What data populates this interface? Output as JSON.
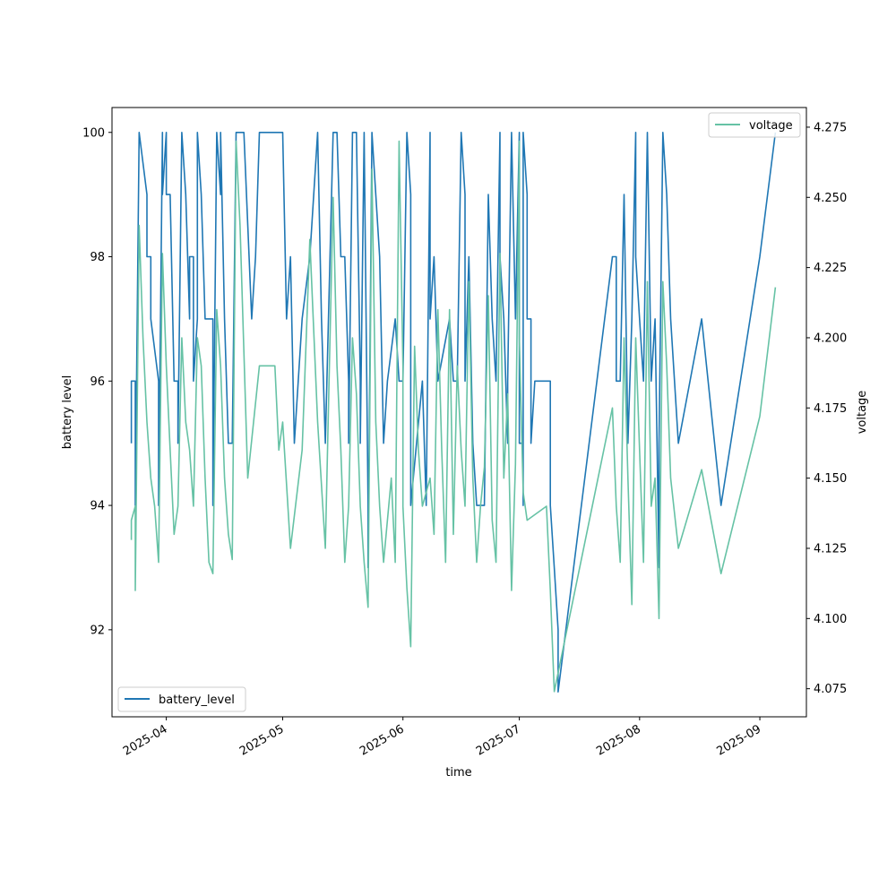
{
  "chart_data": {
    "type": "line",
    "title": "",
    "xlabel": "time",
    "ylabel_left": "battery level",
    "ylabel_right": "voltage",
    "x_ticks": [
      "2025-04-01",
      "2025-05-01",
      "2025-06-01",
      "2025-07-01",
      "2025-08-01",
      "2025-09-01"
    ],
    "x_tick_labels": [
      "2025-04",
      "2025-05",
      "2025-06",
      "2025-07",
      "2025-08",
      "2025-09"
    ],
    "xlim": [
      "2025-03-18",
      "2025-09-13"
    ],
    "ylim_left": [
      90.6,
      100.4
    ],
    "ylim_right": [
      4.065,
      4.282
    ],
    "y_ticks_left": [
      92,
      94,
      96,
      98,
      100
    ],
    "y_tick_labels_left": [
      "92",
      "94",
      "96",
      "98",
      "100"
    ],
    "y_ticks_right": [
      4.075,
      4.1,
      4.125,
      4.15,
      4.175,
      4.2,
      4.225,
      4.25,
      4.275
    ],
    "y_tick_labels_right": [
      "4.075",
      "4.100",
      "4.125",
      "4.150",
      "4.175",
      "4.200",
      "4.225",
      "4.250",
      "4.275"
    ],
    "grid": false,
    "series": [
      {
        "name": "battery_level",
        "axis": "left",
        "color": "#1f77b4",
        "legend": "lower-left",
        "points": [
          [
            "2025-03-23",
            95
          ],
          [
            "2025-03-23",
            96
          ],
          [
            "2025-03-24",
            96
          ],
          [
            "2025-03-24",
            94
          ],
          [
            "2025-03-25",
            100
          ],
          [
            "2025-03-25",
            100
          ],
          [
            "2025-03-27",
            99
          ],
          [
            "2025-03-27",
            98
          ],
          [
            "2025-03-28",
            98
          ],
          [
            "2025-03-28",
            97
          ],
          [
            "2025-03-30",
            96
          ],
          [
            "2025-03-30",
            94
          ],
          [
            "2025-03-31",
            100
          ],
          [
            "2025-03-31",
            99
          ],
          [
            "2025-04-01",
            100
          ],
          [
            "2025-04-01",
            99
          ],
          [
            "2025-04-02",
            99
          ],
          [
            "2025-04-03",
            96
          ],
          [
            "2025-04-04",
            96
          ],
          [
            "2025-04-04",
            95
          ],
          [
            "2025-04-05",
            100
          ],
          [
            "2025-04-06",
            99
          ],
          [
            "2025-04-07",
            97
          ],
          [
            "2025-04-07",
            98
          ],
          [
            "2025-04-08",
            98
          ],
          [
            "2025-04-08",
            96
          ],
          [
            "2025-04-09",
            97
          ],
          [
            "2025-04-09",
            100
          ],
          [
            "2025-04-10",
            99
          ],
          [
            "2025-04-11",
            97
          ],
          [
            "2025-04-12",
            97
          ],
          [
            "2025-04-13",
            97
          ],
          [
            "2025-04-13",
            94
          ],
          [
            "2025-04-14",
            100
          ],
          [
            "2025-04-15",
            99
          ],
          [
            "2025-04-15",
            100
          ],
          [
            "2025-04-16",
            97
          ],
          [
            "2025-04-17",
            95
          ],
          [
            "2025-04-18",
            95
          ],
          [
            "2025-04-18",
            95
          ],
          [
            "2025-04-19",
            100
          ],
          [
            "2025-04-20",
            100
          ],
          [
            "2025-04-21",
            100
          ],
          [
            "2025-04-21",
            100
          ],
          [
            "2025-04-23",
            97
          ],
          [
            "2025-04-24",
            98
          ],
          [
            "2025-04-25",
            100
          ],
          [
            "2025-04-27",
            100
          ],
          [
            "2025-04-28",
            100
          ],
          [
            "2025-04-30",
            100
          ],
          [
            "2025-05-01",
            100
          ],
          [
            "2025-05-02",
            97
          ],
          [
            "2025-05-03",
            98
          ],
          [
            "2025-05-04",
            95
          ],
          [
            "2025-05-06",
            97
          ],
          [
            "2025-05-08",
            98
          ],
          [
            "2025-05-10",
            100
          ],
          [
            "2025-05-11",
            97
          ],
          [
            "2025-05-12",
            95
          ],
          [
            "2025-05-14",
            100
          ],
          [
            "2025-05-14",
            100
          ],
          [
            "2025-05-15",
            100
          ],
          [
            "2025-05-16",
            98
          ],
          [
            "2025-05-17",
            98
          ],
          [
            "2025-05-18",
            96
          ],
          [
            "2025-05-18",
            95
          ],
          [
            "2025-05-19",
            100
          ],
          [
            "2025-05-20",
            100
          ],
          [
            "2025-05-21",
            96
          ],
          [
            "2025-05-21",
            95
          ],
          [
            "2025-05-22",
            100
          ],
          [
            "2025-05-23",
            94
          ],
          [
            "2025-05-23",
            93
          ],
          [
            "2025-05-24",
            100
          ],
          [
            "2025-05-25",
            99
          ],
          [
            "2025-05-26",
            98
          ],
          [
            "2025-05-27",
            95
          ],
          [
            "2025-05-28",
            96
          ],
          [
            "2025-05-30",
            97
          ],
          [
            "2025-05-31",
            96
          ],
          [
            "2025-06-01",
            96
          ],
          [
            "2025-06-02",
            100
          ],
          [
            "2025-06-02",
            100
          ],
          [
            "2025-06-03",
            99
          ],
          [
            "2025-06-03",
            94
          ],
          [
            "2025-06-06",
            96
          ],
          [
            "2025-06-07",
            94
          ],
          [
            "2025-06-08",
            100
          ],
          [
            "2025-06-08",
            97
          ],
          [
            "2025-06-09",
            98
          ],
          [
            "2025-06-10",
            96
          ],
          [
            "2025-06-13",
            97
          ],
          [
            "2025-06-14",
            96
          ],
          [
            "2025-06-15",
            96
          ],
          [
            "2025-06-16",
            100
          ],
          [
            "2025-06-16",
            100
          ],
          [
            "2025-06-17",
            99
          ],
          [
            "2025-06-17",
            96
          ],
          [
            "2025-06-18",
            98
          ],
          [
            "2025-06-19",
            95
          ],
          [
            "2025-06-20",
            94
          ],
          [
            "2025-06-22",
            94
          ],
          [
            "2025-06-23",
            99
          ],
          [
            "2025-06-24",
            97
          ],
          [
            "2025-06-25",
            96
          ],
          [
            "2025-06-26",
            100
          ],
          [
            "2025-06-26",
            98
          ],
          [
            "2025-06-27",
            97
          ],
          [
            "2025-06-28",
            95
          ],
          [
            "2025-06-28",
            96
          ],
          [
            "2025-06-29",
            100
          ],
          [
            "2025-06-30",
            97
          ],
          [
            "2025-07-01",
            100
          ],
          [
            "2025-07-01",
            99
          ],
          [
            "2025-07-01",
            95
          ],
          [
            "2025-07-02",
            95
          ],
          [
            "2025-07-02",
            94
          ],
          [
            "2025-07-02",
            100
          ],
          [
            "2025-07-03",
            99
          ],
          [
            "2025-07-03",
            97
          ],
          [
            "2025-07-04",
            97
          ],
          [
            "2025-07-04",
            95
          ],
          [
            "2025-07-05",
            96
          ],
          [
            "2025-07-07",
            96
          ],
          [
            "2025-07-09",
            96
          ],
          [
            "2025-07-09",
            94
          ],
          [
            "2025-07-10",
            93
          ],
          [
            "2025-07-11",
            92
          ],
          [
            "2025-07-11",
            91
          ],
          [
            "2025-07-25",
            98
          ],
          [
            "2025-07-26",
            98
          ],
          [
            "2025-07-26",
            96
          ],
          [
            "2025-07-27",
            96
          ],
          [
            "2025-07-28",
            99
          ],
          [
            "2025-07-29",
            95
          ],
          [
            "2025-07-30",
            97
          ],
          [
            "2025-07-31",
            100
          ],
          [
            "2025-07-31",
            98
          ],
          [
            "2025-08-01",
            97
          ],
          [
            "2025-08-01",
            97
          ],
          [
            "2025-08-02",
            96
          ],
          [
            "2025-08-03",
            100
          ],
          [
            "2025-08-04",
            96
          ],
          [
            "2025-08-05",
            97
          ],
          [
            "2025-08-06",
            93
          ],
          [
            "2025-08-06",
            95
          ],
          [
            "2025-08-07",
            100
          ],
          [
            "2025-08-08",
            99
          ],
          [
            "2025-08-09",
            97
          ],
          [
            "2025-08-11",
            95
          ],
          [
            "2025-08-17",
            97
          ],
          [
            "2025-08-22",
            94
          ],
          [
            "2025-09-01",
            98
          ],
          [
            "2025-09-05",
            100
          ]
        ]
      },
      {
        "name": "voltage",
        "axis": "right",
        "color": "#66c2a5",
        "legend": "upper-right",
        "points": [
          [
            "2025-03-23",
            4.128
          ],
          [
            "2025-03-23",
            4.135
          ],
          [
            "2025-03-24",
            4.14
          ],
          [
            "2025-03-24",
            4.11
          ],
          [
            "2025-03-25",
            4.24
          ],
          [
            "2025-03-26",
            4.2
          ],
          [
            "2025-03-27",
            4.17
          ],
          [
            "2025-03-28",
            4.15
          ],
          [
            "2025-03-29",
            4.14
          ],
          [
            "2025-03-30",
            4.12
          ],
          [
            "2025-03-31",
            4.23
          ],
          [
            "2025-04-01",
            4.19
          ],
          [
            "2025-04-02",
            4.16
          ],
          [
            "2025-04-03",
            4.13
          ],
          [
            "2025-04-04",
            4.14
          ],
          [
            "2025-04-05",
            4.2
          ],
          [
            "2025-04-06",
            4.17
          ],
          [
            "2025-04-07",
            4.16
          ],
          [
            "2025-04-08",
            4.14
          ],
          [
            "2025-04-09",
            4.2
          ],
          [
            "2025-04-10",
            4.19
          ],
          [
            "2025-04-11",
            4.15
          ],
          [
            "2025-04-12",
            4.12
          ],
          [
            "2025-04-13",
            4.116
          ],
          [
            "2025-04-14",
            4.21
          ],
          [
            "2025-04-15",
            4.19
          ],
          [
            "2025-04-16",
            4.15
          ],
          [
            "2025-04-17",
            4.13
          ],
          [
            "2025-04-18",
            4.121
          ],
          [
            "2025-04-19",
            4.27
          ],
          [
            "2025-04-20",
            4.24
          ],
          [
            "2025-04-22",
            4.15
          ],
          [
            "2025-04-25",
            4.19
          ],
          [
            "2025-04-29",
            4.19
          ],
          [
            "2025-04-30",
            4.16
          ],
          [
            "2025-05-01",
            4.17
          ],
          [
            "2025-05-03",
            4.125
          ],
          [
            "2025-05-06",
            4.16
          ],
          [
            "2025-05-08",
            4.235
          ],
          [
            "2025-05-10",
            4.17
          ],
          [
            "2025-05-12",
            4.125
          ],
          [
            "2025-05-14",
            4.25
          ],
          [
            "2025-05-15",
            4.19
          ],
          [
            "2025-05-16",
            4.16
          ],
          [
            "2025-05-17",
            4.12
          ],
          [
            "2025-05-18",
            4.14
          ],
          [
            "2025-05-19",
            4.2
          ],
          [
            "2025-05-20",
            4.18
          ],
          [
            "2025-05-21",
            4.14
          ],
          [
            "2025-05-22",
            4.12
          ],
          [
            "2025-05-23",
            4.104
          ],
          [
            "2025-05-24",
            4.26
          ],
          [
            "2025-05-25",
            4.17
          ],
          [
            "2025-05-26",
            4.14
          ],
          [
            "2025-05-27",
            4.12
          ],
          [
            "2025-05-29",
            4.15
          ],
          [
            "2025-05-30",
            4.12
          ],
          [
            "2025-05-31",
            4.27
          ],
          [
            "2025-06-01",
            4.19
          ],
          [
            "2025-06-01",
            4.14
          ],
          [
            "2025-06-02",
            4.111
          ],
          [
            "2025-06-03",
            4.09
          ],
          [
            "2025-06-04",
            4.197
          ],
          [
            "2025-06-05",
            4.16
          ],
          [
            "2025-06-06",
            4.14
          ],
          [
            "2025-06-08",
            4.15
          ],
          [
            "2025-06-09",
            4.13
          ],
          [
            "2025-06-10",
            4.21
          ],
          [
            "2025-06-11",
            4.16
          ],
          [
            "2025-06-12",
            4.12
          ],
          [
            "2025-06-13",
            4.21
          ],
          [
            "2025-06-14",
            4.13
          ],
          [
            "2025-06-15",
            4.19
          ],
          [
            "2025-06-16",
            4.16
          ],
          [
            "2025-06-17",
            4.14
          ],
          [
            "2025-06-18",
            4.22
          ],
          [
            "2025-06-19",
            4.15
          ],
          [
            "2025-06-20",
            4.12
          ],
          [
            "2025-06-21",
            4.14
          ],
          [
            "2025-06-22",
            4.154
          ],
          [
            "2025-06-23",
            4.215
          ],
          [
            "2025-06-24",
            4.135
          ],
          [
            "2025-06-25",
            4.12
          ],
          [
            "2025-06-26",
            4.23
          ],
          [
            "2025-06-27",
            4.15
          ],
          [
            "2025-06-28",
            4.18
          ],
          [
            "2025-06-29",
            4.11
          ],
          [
            "2025-06-30",
            4.155
          ],
          [
            "2025-07-01",
            4.27
          ],
          [
            "2025-07-01",
            4.2
          ],
          [
            "2025-07-02",
            4.145
          ],
          [
            "2025-07-03",
            4.135
          ],
          [
            "2025-07-08",
            4.14
          ],
          [
            "2025-07-09",
            4.11
          ],
          [
            "2025-07-10",
            4.074
          ],
          [
            "2025-07-25",
            4.175
          ],
          [
            "2025-07-26",
            4.14
          ],
          [
            "2025-07-27",
            4.12
          ],
          [
            "2025-07-28",
            4.2
          ],
          [
            "2025-07-29",
            4.15
          ],
          [
            "2025-07-30",
            4.105
          ],
          [
            "2025-07-31",
            4.2
          ],
          [
            "2025-08-01",
            4.16
          ],
          [
            "2025-08-02",
            4.12
          ],
          [
            "2025-08-03",
            4.22
          ],
          [
            "2025-08-04",
            4.14
          ],
          [
            "2025-08-05",
            4.15
          ],
          [
            "2025-08-06",
            4.1
          ],
          [
            "2025-08-07",
            4.22
          ],
          [
            "2025-08-08",
            4.19
          ],
          [
            "2025-08-09",
            4.15
          ],
          [
            "2025-08-11",
            4.125
          ],
          [
            "2025-08-17",
            4.153
          ],
          [
            "2025-08-22",
            4.116
          ],
          [
            "2025-09-01",
            4.172
          ],
          [
            "2025-09-05",
            4.218
          ]
        ]
      }
    ]
  }
}
